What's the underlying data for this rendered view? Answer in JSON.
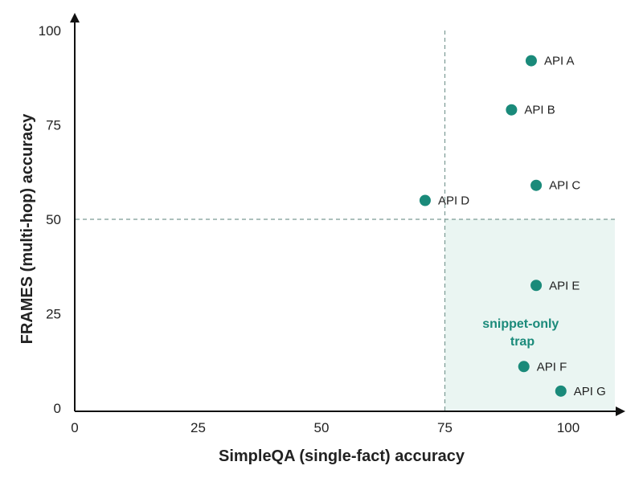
{
  "chart_data": {
    "type": "scatter",
    "title": "",
    "xlabel": "SimpleQA (single-fact) accuracy",
    "ylabel": "FRAMES (multi-hop) accuracy",
    "xlim": [
      0,
      110
    ],
    "ylim": [
      0,
      100
    ],
    "xticks": [
      "0",
      "25",
      "50",
      "75",
      "100"
    ],
    "yticks": [
      "0",
      "25",
      "50",
      "75",
      "100"
    ],
    "x_tick_values": [
      0,
      25,
      50,
      75,
      100
    ],
    "y_tick_values": [
      0,
      25,
      50,
      75,
      100
    ],
    "grid": false,
    "thresholds": {
      "x": 75,
      "y": 50
    },
    "highlight_region": {
      "label_lines": [
        "snippet-only",
        "trap"
      ],
      "x_range": [
        75,
        110
      ],
      "y_range": [
        0,
        50
      ]
    },
    "points": [
      {
        "label": "API A",
        "x": 92.5,
        "y": 92
      },
      {
        "label": "API B",
        "x": 88.5,
        "y": 79
      },
      {
        "label": "API C",
        "x": 93.5,
        "y": 59
      },
      {
        "label": "API D",
        "x": 71,
        "y": 55
      },
      {
        "label": "API E",
        "x": 93.5,
        "y": 32.5
      },
      {
        "label": "API F",
        "x": 91,
        "y": 11
      },
      {
        "label": "API G",
        "x": 98.5,
        "y": 4.5
      }
    ],
    "colors": {
      "point": "#1a8a7a",
      "region_fill": "#eaf5f2",
      "region_text": "#1a8a7a",
      "axis": "#111111",
      "threshold": "#7a9a94"
    }
  }
}
